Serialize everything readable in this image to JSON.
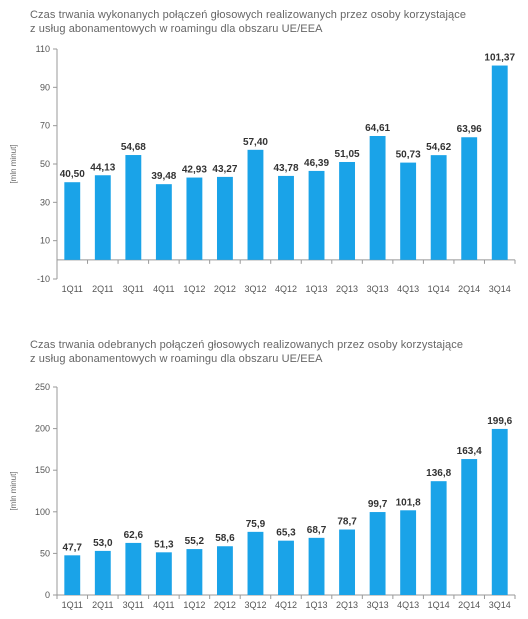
{
  "chart_data": [
    {
      "type": "bar",
      "title": "Czas trwania wykonanych połączeń głosowych realizowanych przez osoby korzystające z usług abonamentowych w roamingu dla obszaru UE/EEA",
      "title_lines": [
        "Czas trwania wykonanych połączeń głosowych realizowanych przez osoby korzystające",
        "z usług abonamentowych w roamingu dla obszaru UE/EEA"
      ],
      "ylabel": "[mln minut]",
      "ylim": [
        -10,
        110
      ],
      "yticks": [
        -10,
        10,
        30,
        50,
        70,
        90,
        110
      ],
      "ytick_labels": [
        "-10",
        "10",
        "30",
        "50",
        "70",
        "90",
        "110"
      ],
      "categories": [
        "1Q11",
        "2Q11",
        "3Q11",
        "4Q11",
        "1Q12",
        "2Q12",
        "3Q12",
        "4Q12",
        "1Q13",
        "2Q13",
        "3Q13",
        "4Q13",
        "1Q14",
        "2Q14",
        "3Q14"
      ],
      "values": [
        40.5,
        44.13,
        54.68,
        39.48,
        42.93,
        43.27,
        57.4,
        43.78,
        46.39,
        51.05,
        64.61,
        50.73,
        54.62,
        63.96,
        101.37
      ],
      "value_labels": [
        "40,50",
        "44,13",
        "54,68",
        "39,48",
        "42,93",
        "43,27",
        "57,40",
        "43,78",
        "46,39",
        "51,05",
        "64,61",
        "50,73",
        "54,62",
        "63,96",
        "101,37"
      ],
      "bar_color": "#1aa3e8"
    },
    {
      "type": "bar",
      "title": "Czas trwania odebranych połączeń głosowych realizowanych przez osoby korzystające z usług abonamentowych w roamingu dla obszaru UE/EEA",
      "title_lines": [
        "Czas trwania odebranych połączeń głosowych realizowanych przez osoby korzystające",
        "z usług abonamentowych w roamingu dla obszaru UE/EEA"
      ],
      "ylabel": "[mln minut]",
      "ylim": [
        0,
        250
      ],
      "yticks": [
        0,
        50,
        100,
        150,
        200,
        250
      ],
      "ytick_labels": [
        "0",
        "50",
        "100",
        "150",
        "200",
        "250"
      ],
      "categories": [
        "1Q11",
        "2Q11",
        "3Q11",
        "4Q11",
        "1Q12",
        "2Q12",
        "3Q12",
        "4Q12",
        "1Q13",
        "2Q13",
        "3Q13",
        "4Q13",
        "1Q14",
        "2Q14",
        "3Q14"
      ],
      "values": [
        47.7,
        53.0,
        62.6,
        51.3,
        55.2,
        58.6,
        75.9,
        65.3,
        68.7,
        78.7,
        99.7,
        101.8,
        136.8,
        163.4,
        199.6
      ],
      "value_labels": [
        "47,7",
        "53,0",
        "62,6",
        "51,3",
        "55,2",
        "58,6",
        "75,9",
        "65,3",
        "68,7",
        "78,7",
        "99,7",
        "101,8",
        "136,8",
        "163,4",
        "199,6"
      ],
      "bar_color": "#1aa3e8"
    }
  ]
}
